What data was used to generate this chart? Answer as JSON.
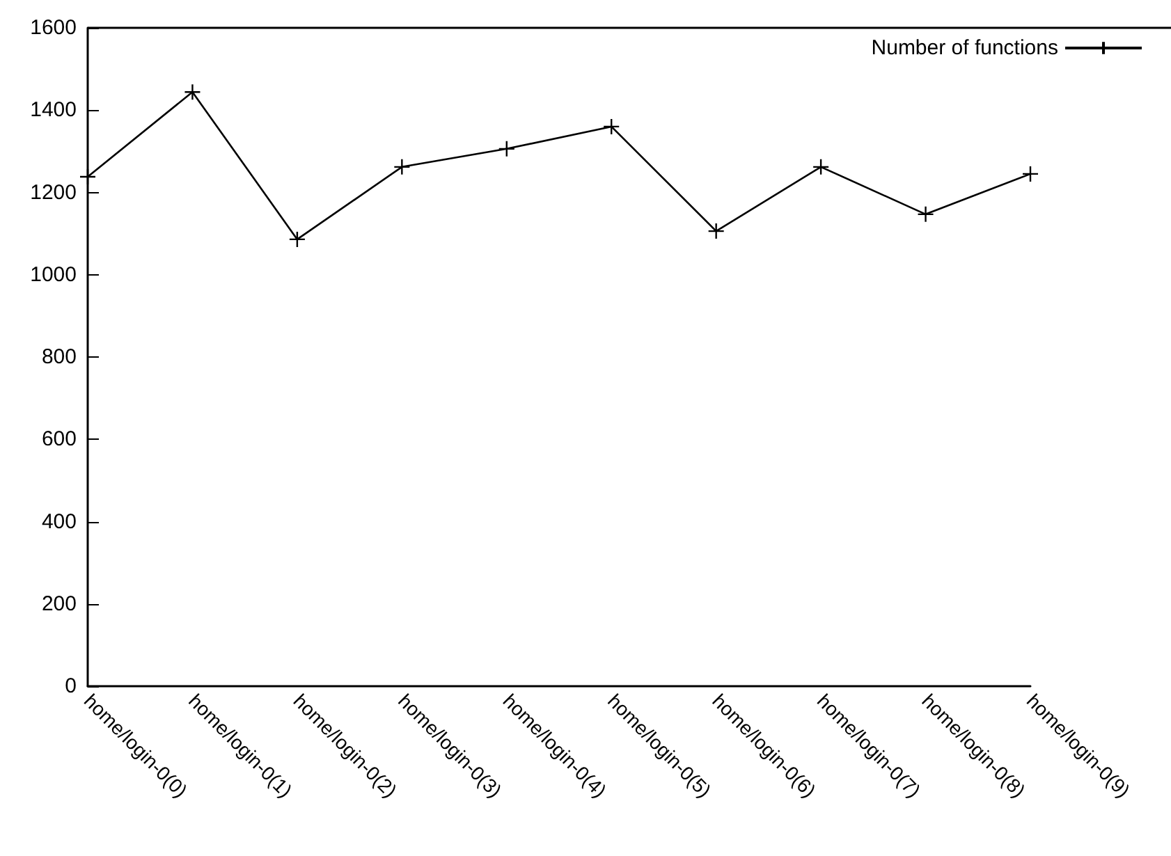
{
  "chart_data": {
    "type": "line",
    "categories": [
      "home/login-0(0)",
      "home/login-0(1)",
      "home/login-0(2)",
      "home/login-0(3)",
      "home/login-0(4)",
      "home/login-0(5)",
      "home/login-0(6)",
      "home/login-0(7)",
      "home/login-0(8)",
      "home/login-0(9)"
    ],
    "series": [
      {
        "name": "Number of functions",
        "color": "#000000",
        "values": [
          1238,
          1444,
          1086,
          1262,
          1306,
          1360,
          1106,
          1262,
          1147,
          1245
        ]
      }
    ],
    "ylim": [
      0,
      1600
    ],
    "yticks": [
      0,
      200,
      400,
      600,
      800,
      1000,
      1200,
      1400,
      1600
    ],
    "grid": false,
    "legend": "top right",
    "marker": "cross",
    "line_style": "solid"
  }
}
